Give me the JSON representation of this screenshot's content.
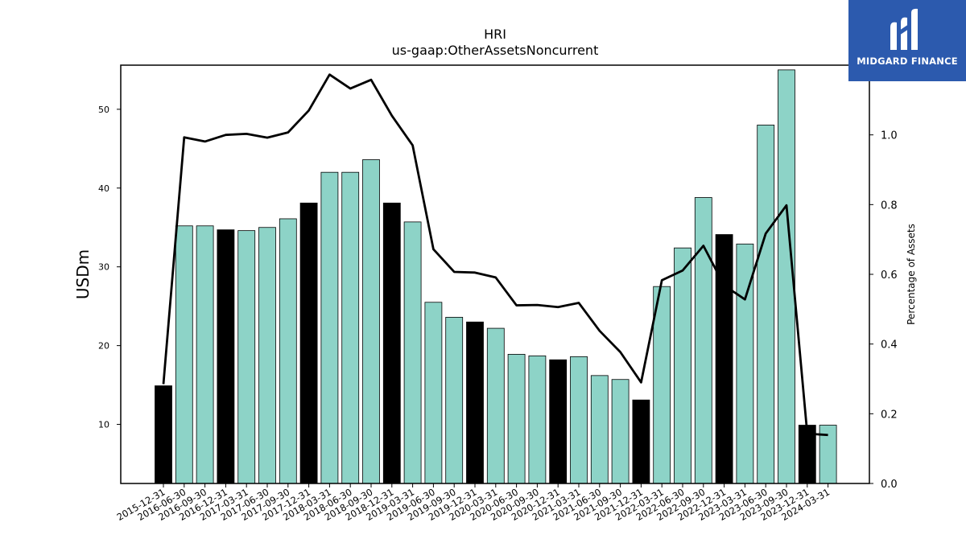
{
  "chart_data": {
    "type": "bar",
    "title": "HRI",
    "subtitle": "us-gaap:OtherAssetsNoncurrent",
    "ylabel": "USDm",
    "y2label": "Percentage of Assets",
    "ylim": [
      2.5,
      55.6
    ],
    "y2lim": [
      0.0,
      1.2
    ],
    "yticks": [
      10,
      20,
      30,
      40,
      50
    ],
    "y2ticks": [
      0.0,
      0.2,
      0.4,
      0.6,
      0.8,
      1.0
    ],
    "grid": false,
    "categories": [
      "2015-12-31",
      "2016-06-30",
      "2016-09-30",
      "2016-12-31",
      "2017-03-31",
      "2017-06-30",
      "2017-09-30",
      "2017-12-31",
      "2018-03-31",
      "2018-06-30",
      "2018-09-30",
      "2018-12-31",
      "2019-03-31",
      "2019-06-30",
      "2019-09-30",
      "2019-12-31",
      "2020-03-31",
      "2020-06-30",
      "2020-09-30",
      "2020-12-31",
      "2021-03-31",
      "2021-06-30",
      "2021-09-30",
      "2021-12-31",
      "2022-03-31",
      "2022-06-30",
      "2022-09-30",
      "2022-12-31",
      "2023-03-31",
      "2023-06-30",
      "2023-09-30",
      "2023-12-31",
      "2024-03-31"
    ],
    "series": [
      {
        "kind": "bar",
        "axis": "left",
        "values": [
          14.9,
          35.2,
          35.2,
          34.7,
          34.6,
          35.0,
          36.1,
          38.1,
          42.0,
          42.0,
          43.6,
          38.1,
          35.7,
          25.5,
          23.6,
          23.0,
          22.2,
          18.9,
          18.7,
          18.2,
          18.6,
          16.2,
          15.7,
          13.1,
          27.5,
          32.4,
          38.8,
          34.1,
          32.9,
          48.0,
          55.0,
          9.9,
          9.9
        ],
        "year_end_color": "#000000",
        "color": "#8dd3c7"
      },
      {
        "kind": "line",
        "axis": "right",
        "color": "#000000",
        "values": [
          0.285,
          0.993,
          0.981,
          1.0,
          1.003,
          0.992,
          1.007,
          1.07,
          1.173,
          1.133,
          1.158,
          1.055,
          0.97,
          0.672,
          0.607,
          0.605,
          0.591,
          0.511,
          0.512,
          0.506,
          0.518,
          0.438,
          0.377,
          0.29,
          0.583,
          0.611,
          0.682,
          0.568,
          0.528,
          0.717,
          0.798,
          0.143,
          0.139
        ]
      }
    ]
  },
  "logo": {
    "text": "MIDGARD FINANCE"
  }
}
